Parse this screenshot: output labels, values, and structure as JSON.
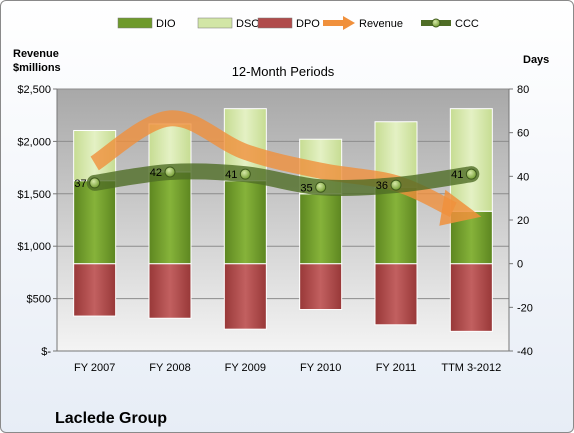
{
  "chart_data": {
    "type": "bar",
    "title": "12-Month Periods",
    "company": "Laclede Group",
    "left_axis_title": [
      "Revenue",
      "$millions"
    ],
    "right_axis_title": "Days",
    "categories": [
      "FY 2007",
      "FY 2008",
      "FY 2009",
      "FY 2010",
      "FY 2011",
      "TTM 3-2012"
    ],
    "left_axis": {
      "min": 0,
      "max": 2500,
      "step": 500,
      "tick_labels": [
        "$-",
        "$500",
        "$1,000",
        "$1,500",
        "$2,000",
        "$2,500"
      ]
    },
    "right_axis": {
      "min": -40,
      "max": 80,
      "step": 20,
      "tick_labels": [
        "-40",
        "-20",
        "0",
        "20",
        "40",
        "60",
        "80"
      ]
    },
    "legend": [
      {
        "name": "DIO",
        "kind": "bar",
        "color": "#6f9a2c"
      },
      {
        "name": "DSO",
        "kind": "bar",
        "color": "#d2e6a6"
      },
      {
        "name": "DPO",
        "kind": "bar",
        "color": "#b04b4b"
      },
      {
        "name": "Revenue",
        "kind": "arrow",
        "color": "#f0903c"
      },
      {
        "name": "CCC",
        "kind": "line-marker",
        "color": "#4f6d26"
      }
    ],
    "series": [
      {
        "name": "DIO",
        "axis": "days",
        "values": [
          38,
          42,
          38,
          32,
          35,
          24
        ]
      },
      {
        "name": "DSO",
        "axis": "days",
        "values": [
          23,
          22,
          33,
          25,
          30,
          47
        ]
      },
      {
        "name": "DPO",
        "axis": "days",
        "values": [
          -24,
          -25,
          -30,
          -21,
          -28,
          -31
        ]
      },
      {
        "name": "Revenue",
        "axis": "revenue",
        "values": [
          1790,
          2220,
          1900,
          1720,
          1600,
          1300
        ]
      },
      {
        "name": "CCC",
        "axis": "days",
        "values": [
          37,
          42,
          41,
          35,
          36,
          41
        ],
        "labels": [
          "37",
          "42",
          "41",
          "35",
          "36",
          "41"
        ]
      }
    ],
    "grid": "horizontal",
    "legend_position": "top"
  }
}
